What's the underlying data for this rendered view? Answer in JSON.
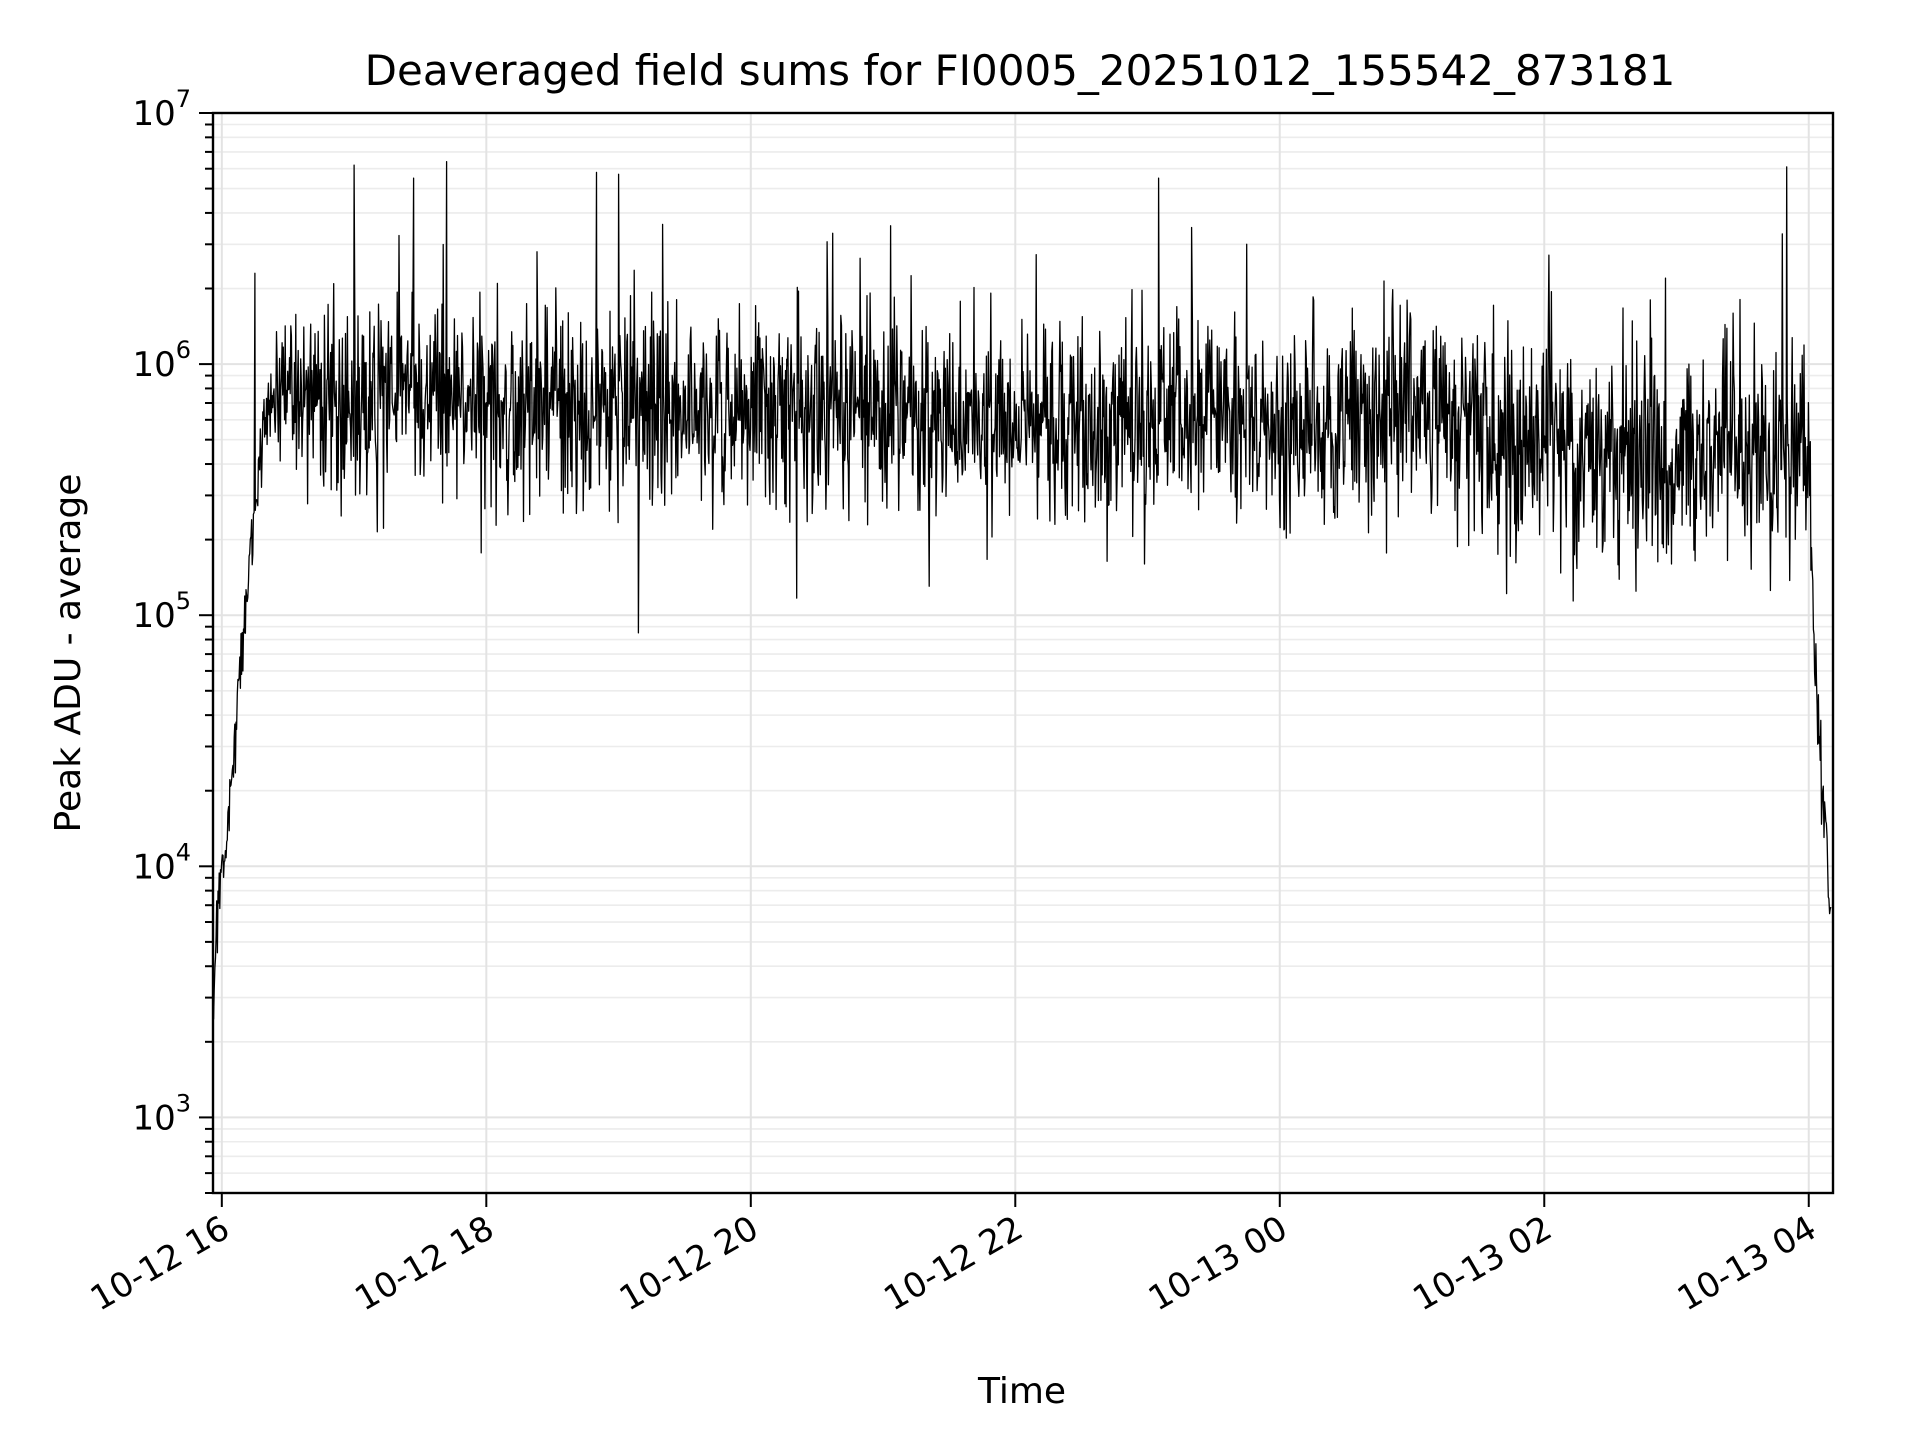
{
  "chart_data": {
    "type": "line",
    "title": "Deaveraged field sums for FI0005_20251012_155542_873181",
    "xlabel": "Time",
    "ylabel": "Peak ADU - average",
    "x_axis": "datetime",
    "xlim": [
      "2025-10-12 15:56",
      "2025-10-13 04:11"
    ],
    "x_ticks": [
      {
        "value": "2025-10-12 16:00",
        "label": "10-12 16"
      },
      {
        "value": "2025-10-12 18:00",
        "label": "10-12 18"
      },
      {
        "value": "2025-10-12 20:00",
        "label": "10-12 20"
      },
      {
        "value": "2025-10-12 22:00",
        "label": "10-12 22"
      },
      {
        "value": "2025-10-13 00:00",
        "label": "10-13 00"
      },
      {
        "value": "2025-10-13 02:00",
        "label": "10-13 02"
      },
      {
        "value": "2025-10-13 04:00",
        "label": "10-13 04"
      }
    ],
    "y_scale": "log",
    "ylim": [
      500,
      10000000
    ],
    "y_ticks": [
      {
        "value": 1000,
        "base": "10",
        "exp": "3"
      },
      {
        "value": 10000,
        "base": "10",
        "exp": "4"
      },
      {
        "value": 100000,
        "base": "10",
        "exp": "5"
      },
      {
        "value": 1000000,
        "base": "10",
        "exp": "6"
      },
      {
        "value": 10000000,
        "base": "10",
        "exp": "7"
      }
    ],
    "grid": true,
    "line_color": "#000000",
    "series": [
      {
        "x": [
          "2025-10-12 15:56",
          "2025-10-12 15:58",
          "2025-10-12 16:00",
          "2025-10-12 16:03",
          "2025-10-12 16:06",
          "2025-10-12 16:09",
          "2025-10-12 16:12",
          "2025-10-12 16:15",
          "2025-10-12 16:18",
          "2025-10-12 16:21",
          "2025-10-12 16:24",
          "2025-10-12 16:30",
          "2025-10-12 16:45",
          "2025-10-12 17:00",
          "2025-10-12 17:30",
          "2025-10-12 18:00",
          "2025-10-12 18:30",
          "2025-10-12 19:00",
          "2025-10-12 19:30",
          "2025-10-12 20:00",
          "2025-10-12 20:30",
          "2025-10-12 21:00",
          "2025-10-12 21:30",
          "2025-10-12 22:00",
          "2025-10-12 22:30",
          "2025-10-12 23:00",
          "2025-10-12 23:30",
          "2025-10-13 00:00",
          "2025-10-13 00:30",
          "2025-10-13 01:00",
          "2025-10-13 01:30",
          "2025-10-13 02:00",
          "2025-10-13 02:30",
          "2025-10-13 03:00",
          "2025-10-13 03:30",
          "2025-10-13 03:50",
          "2025-10-13 04:00",
          "2025-10-13 04:02",
          "2025-10-13 04:04",
          "2025-10-13 04:06",
          "2025-10-13 04:08",
          "2025-10-13 04:10"
        ],
        "y": [
          3000,
          6000,
          10000,
          15000,
          30000,
          80000,
          150000,
          250000,
          500000,
          700000,
          650000,
          700000,
          700000,
          750000,
          800000,
          700000,
          650000,
          650000,
          650000,
          700000,
          700000,
          650000,
          600000,
          600000,
          550000,
          600000,
          650000,
          600000,
          600000,
          650000,
          550000,
          500000,
          500000,
          450000,
          450000,
          400000,
          500000,
          100000,
          40000,
          20000,
          15000,
          5000
        ],
        "spikes": [
          {
            "x": "2025-10-12 16:15",
            "y": 2300000
          },
          {
            "x": "2025-10-12 17:00",
            "y": 6200000
          },
          {
            "x": "2025-10-12 17:27",
            "y": 5500000
          },
          {
            "x": "2025-10-12 17:42",
            "y": 6400000
          },
          {
            "x": "2025-10-12 18:23",
            "y": 2800000
          },
          {
            "x": "2025-10-12 18:50",
            "y": 5800000
          },
          {
            "x": "2025-10-12 19:00",
            "y": 5700000
          },
          {
            "x": "2025-10-12 19:09",
            "y": 85000
          },
          {
            "x": "2025-10-12 19:20",
            "y": 3600000
          },
          {
            "x": "2025-10-12 23:05",
            "y": 5500000
          },
          {
            "x": "2025-10-12 23:20",
            "y": 3500000
          },
          {
            "x": "2025-10-12 23:45",
            "y": 3000000
          },
          {
            "x": "2025-10-13 02:55",
            "y": 2200000
          },
          {
            "x": "2025-10-13 03:48",
            "y": 3300000
          },
          {
            "x": "2025-10-13 03:50",
            "y": 6100000
          }
        ]
      }
    ]
  }
}
